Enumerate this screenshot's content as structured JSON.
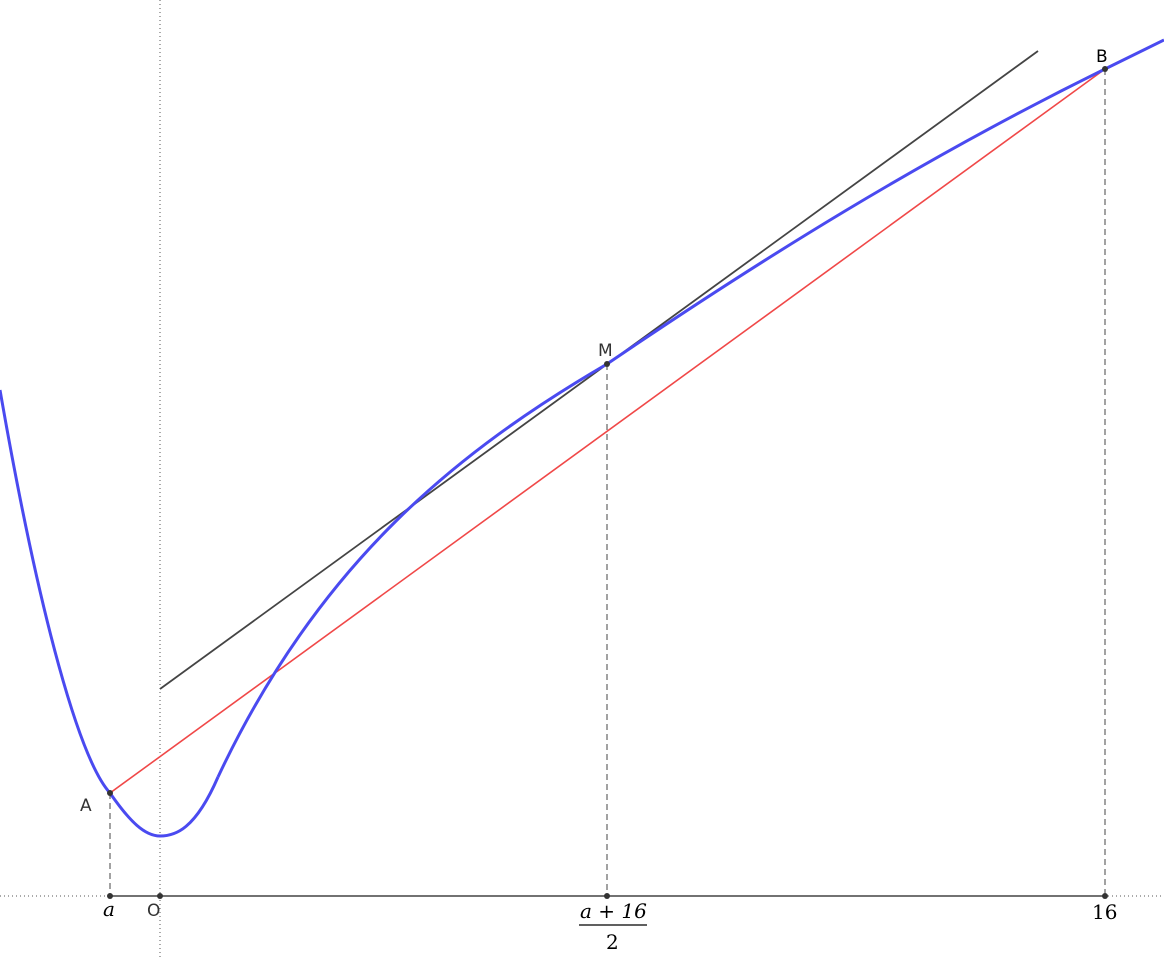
{
  "points": {
    "A": "A",
    "B": "B",
    "M": "M",
    "O": "O"
  },
  "axis_labels": {
    "a": "a",
    "mid_numerator": "a + 16",
    "mid_denominator": "2",
    "sixteen": "16"
  },
  "colors": {
    "curve": "#4a4af0",
    "chord": "#f04848",
    "tangent": "#444444",
    "guides": "#444444",
    "axes": "#555555"
  }
}
